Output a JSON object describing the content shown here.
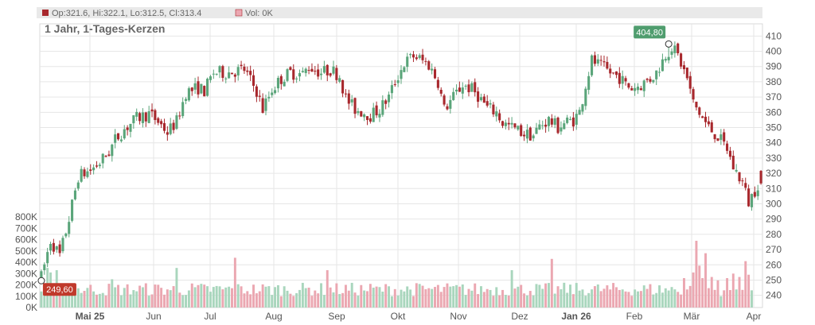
{
  "header": {
    "ohlc_text": "Op:321.6, Hi:322.1, Lo:312.5, Cl:313.4",
    "vol_text": "Vol: 0K"
  },
  "title": "1 Jahr, 1-Tages-Kerzen",
  "callouts": {
    "high_label": "404,80",
    "low_label": "249,60"
  },
  "colors": {
    "up": "#5aa57a",
    "down": "#a8282d",
    "vol_up": "#a9d6bd",
    "vol_down": "#eba7b1",
    "grid": "#e6e6e6",
    "header_bg": "#e9e9e9",
    "high_badge": "#4f9d6e",
    "low_badge": "#c0392b"
  },
  "chart_data": {
    "type": "candlestick",
    "title": "1 Jahr, 1-Tages-Kerzen",
    "price_axis": {
      "ylim": [
        232,
        418
      ],
      "ticks": [
        240,
        250,
        260,
        270,
        280,
        290,
        300,
        310,
        320,
        330,
        340,
        350,
        360,
        370,
        380,
        390,
        400,
        410
      ]
    },
    "volume_axis": {
      "ylim": [
        0,
        850
      ],
      "unit": "K",
      "ticks": [
        "0K",
        "100K",
        "200K",
        "300K",
        "400K",
        "500K",
        "600K",
        "700K",
        "800K"
      ]
    },
    "x_axis": {
      "months": [
        "Mai 25",
        "Jun",
        "Jul",
        "Aug",
        "Sep",
        "Okt",
        "Nov",
        "Dez",
        "Jan 26",
        "Feb",
        "Mär",
        "Apr"
      ],
      "bold": [
        "Mai 25",
        "Jan 26"
      ]
    },
    "price_path": [
      [
        0,
        252
      ],
      [
        3,
        276
      ],
      [
        6,
        266
      ],
      [
        9,
        290
      ],
      [
        12,
        318
      ],
      [
        16,
        322
      ],
      [
        19,
        327
      ],
      [
        22,
        334
      ],
      [
        24,
        342
      ],
      [
        27,
        349
      ],
      [
        31,
        356
      ],
      [
        35,
        359
      ],
      [
        38,
        354
      ],
      [
        41,
        347
      ],
      [
        44,
        354
      ],
      [
        47,
        373
      ],
      [
        51,
        376
      ],
      [
        53,
        374
      ],
      [
        56,
        386
      ],
      [
        60,
        386
      ],
      [
        63,
        387
      ],
      [
        66,
        388
      ],
      [
        70,
        374
      ],
      [
        72,
        362
      ],
      [
        75,
        375
      ],
      [
        78,
        382
      ],
      [
        81,
        386
      ],
      [
        85,
        385
      ],
      [
        87,
        390
      ],
      [
        91,
        386
      ],
      [
        94,
        388
      ],
      [
        97,
        384
      ],
      [
        99,
        369
      ],
      [
        102,
        362
      ],
      [
        105,
        360
      ],
      [
        107,
        358
      ],
      [
        110,
        362
      ],
      [
        113,
        370
      ],
      [
        115,
        380
      ],
      [
        118,
        392
      ],
      [
        121,
        397
      ],
      [
        123,
        395
      ],
      [
        126,
        391
      ],
      [
        129,
        380
      ],
      [
        131,
        362
      ],
      [
        134,
        370
      ],
      [
        137,
        378
      ],
      [
        140,
        375
      ],
      [
        142,
        371
      ],
      [
        145,
        363
      ],
      [
        148,
        360
      ],
      [
        150,
        353
      ],
      [
        153,
        350
      ],
      [
        155,
        348
      ],
      [
        157,
        346
      ],
      [
        160,
        345
      ],
      [
        162,
        351
      ],
      [
        165,
        355
      ],
      [
        168,
        350
      ],
      [
        170,
        353
      ],
      [
        173,
        355
      ],
      [
        175,
        360
      ],
      [
        177,
        378
      ],
      [
        179,
        394
      ],
      [
        182,
        390
      ],
      [
        185,
        386
      ],
      [
        188,
        383
      ],
      [
        190,
        378
      ],
      [
        192,
        376
      ],
      [
        195,
        378
      ],
      [
        198,
        382
      ],
      [
        200,
        386
      ],
      [
        203,
        398
      ],
      [
        205,
        403
      ],
      [
        207,
        397
      ],
      [
        210,
        382
      ],
      [
        212,
        366
      ],
      [
        215,
        356
      ],
      [
        217,
        350
      ],
      [
        220,
        344
      ],
      [
        223,
        336
      ],
      [
        225,
        324
      ],
      [
        228,
        314
      ],
      [
        230,
        301
      ],
      [
        233,
        313
      ],
      [
        234,
        313.4
      ]
    ],
    "range_high": {
      "value": 404.8,
      "label": "404,80"
    },
    "range_low": {
      "value": 249.6,
      "label": "249,60"
    },
    "last_candle": {
      "open": 321.6,
      "high": 322.1,
      "low": 312.5,
      "close": 313.4
    }
  }
}
